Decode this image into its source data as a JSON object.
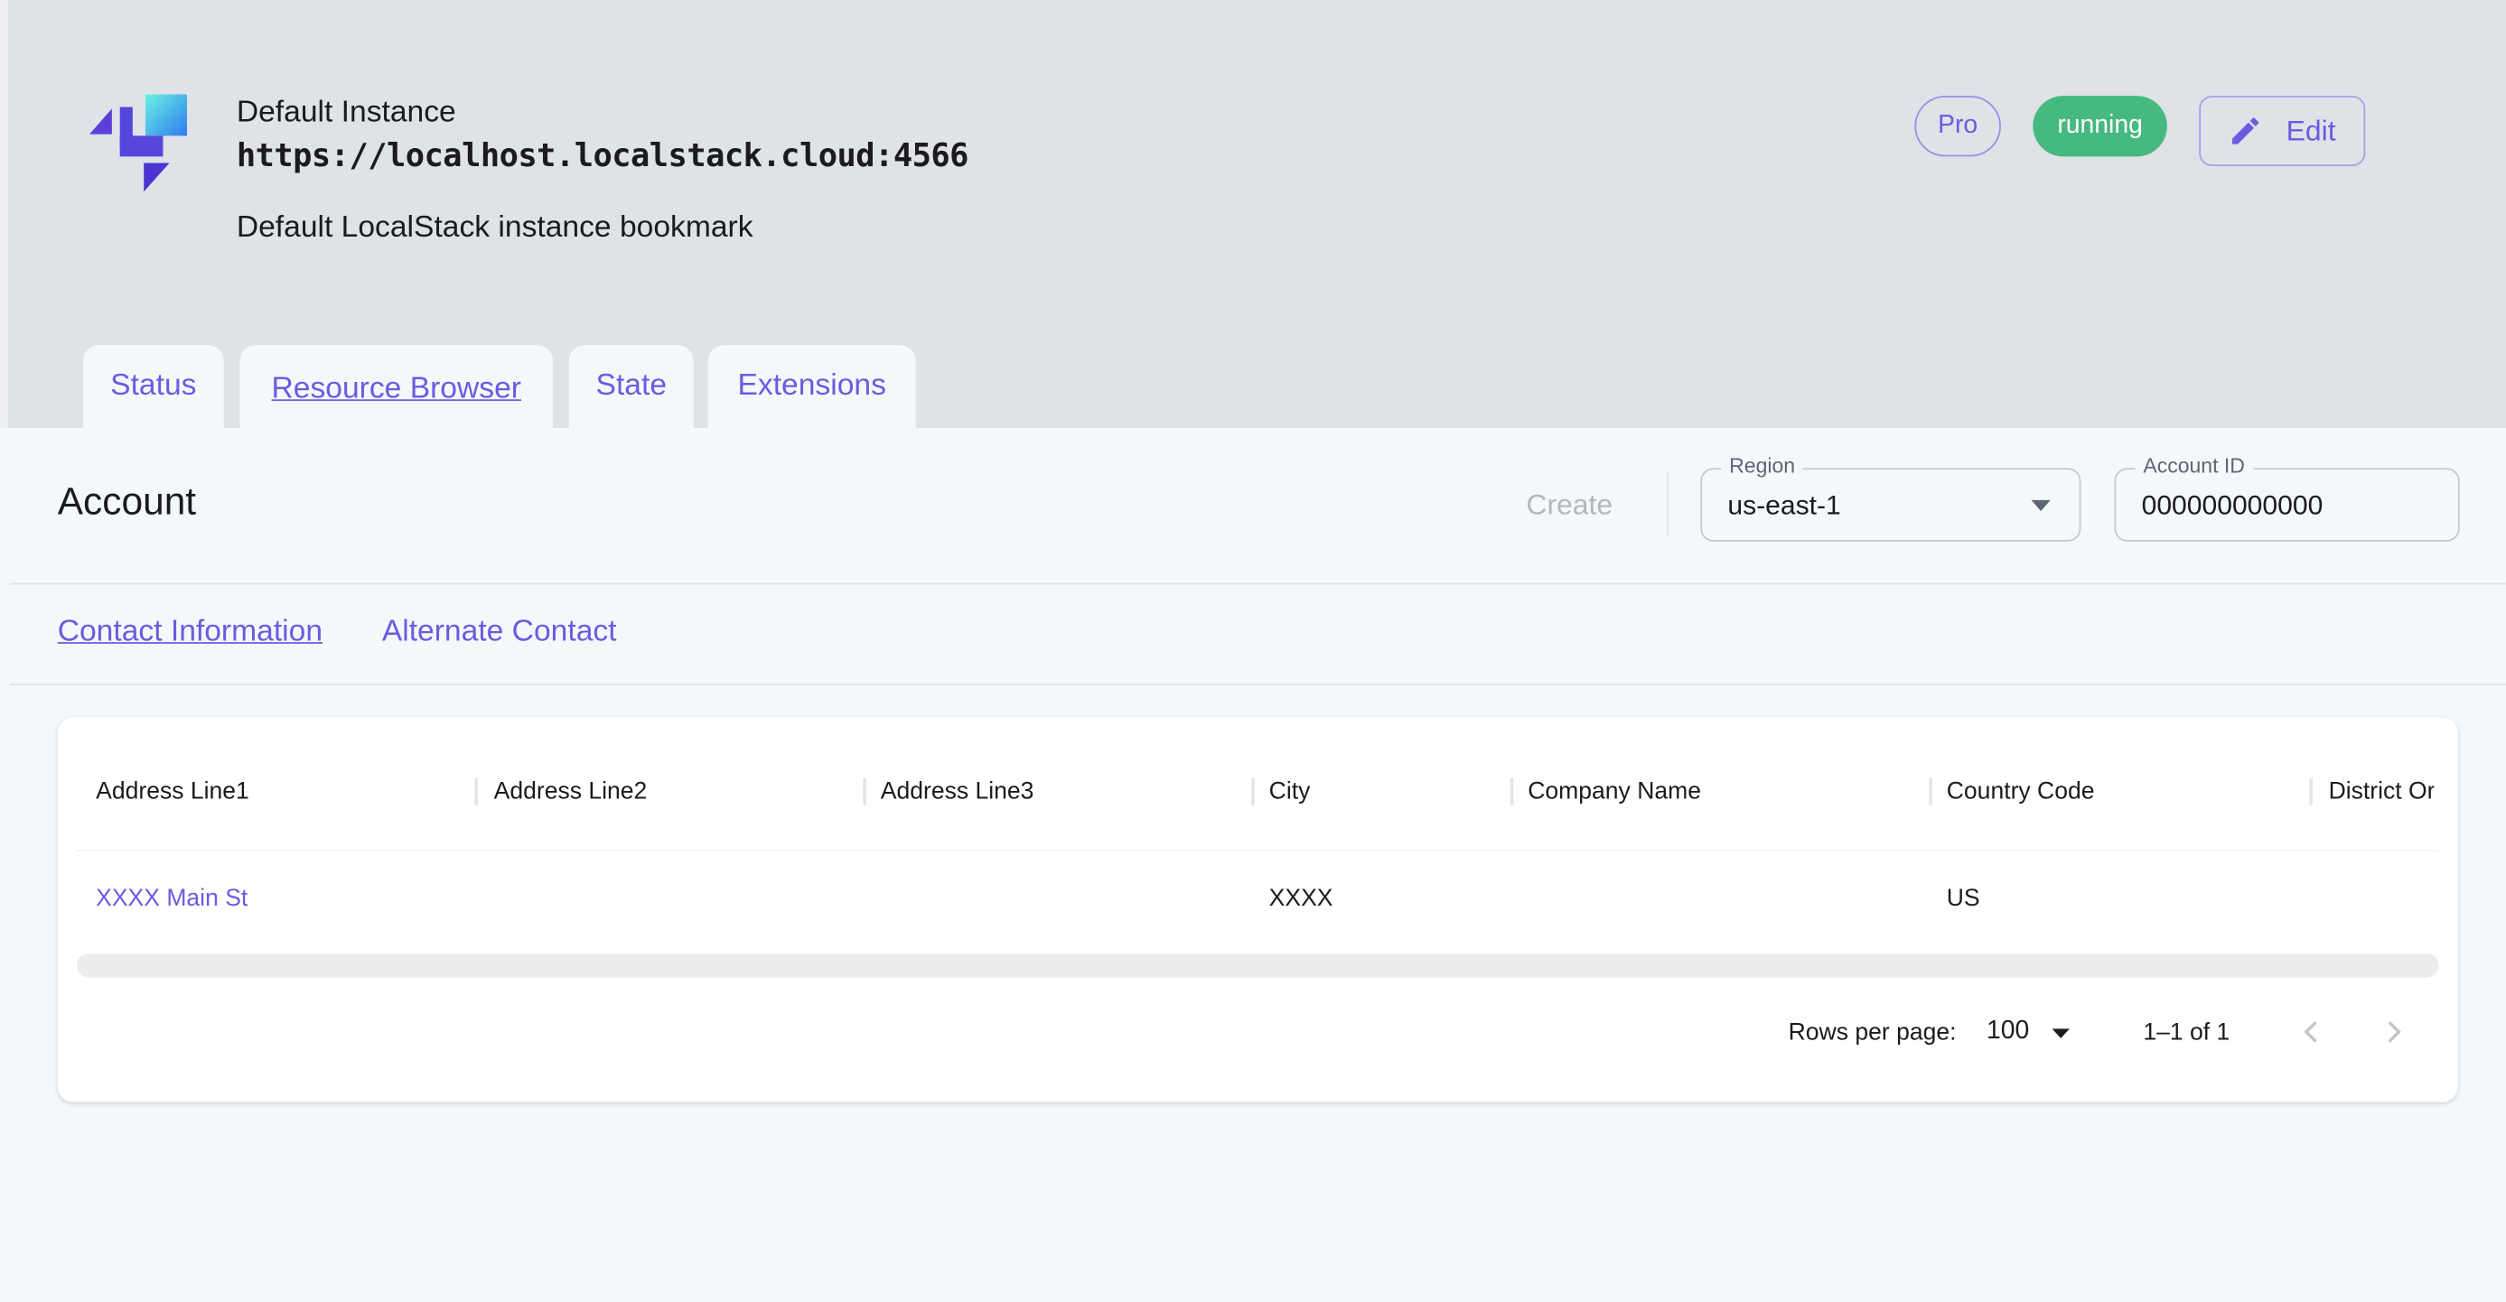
{
  "instance": {
    "name": "Default Instance",
    "url": "https://localhost.localstack.cloud:4566",
    "description": "Default LocalStack instance bookmark",
    "plan_badge": "Pro",
    "status_badge": "running",
    "edit_label": "Edit"
  },
  "colors": {
    "accent": "#6e5ae0",
    "running": "#46b980",
    "header_bg": "#dfe2e7",
    "panel_bg": "#f5f8fb"
  },
  "tabs": [
    {
      "label": "Status"
    },
    {
      "label": "Resource Browser",
      "selected": true
    },
    {
      "label": "State"
    },
    {
      "label": "Extensions"
    }
  ],
  "account": {
    "title": "Account",
    "create_label": "Create",
    "region": {
      "label": "Region",
      "value": "us-east-1"
    },
    "account_id": {
      "label": "Account ID",
      "value": "000000000000"
    }
  },
  "subtabs": [
    {
      "label": "Contact Information",
      "selected": true
    },
    {
      "label": "Alternate Contact"
    }
  ],
  "table": {
    "columns": [
      "Address Line1",
      "Address Line2",
      "Address Line3",
      "City",
      "Company Name",
      "Country Code",
      "District Or"
    ],
    "rows": [
      [
        "XXXX Main St",
        "",
        "",
        "XXXX",
        "",
        "US",
        ""
      ]
    ]
  },
  "pagination": {
    "rows_per_page_label": "Rows per page:",
    "rows_per_page": "100",
    "range": "1–1 of 1"
  }
}
